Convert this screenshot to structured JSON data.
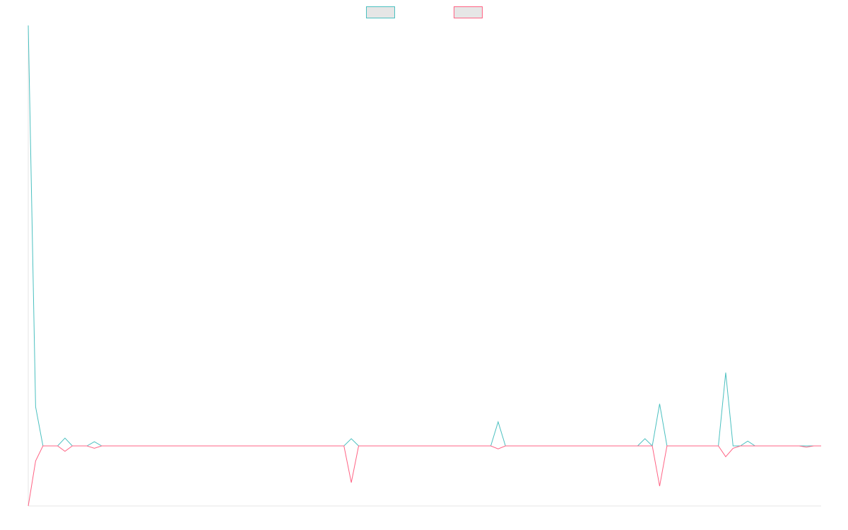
{
  "chart_data": {
    "type": "line",
    "legend": "top",
    "ylim": [
      -1,
      7
    ],
    "series": [
      {
        "color": "#4bc0c0",
        "values": [
          7,
          0.65,
          0,
          0,
          0,
          0.13,
          0,
          0,
          0,
          0.07,
          0,
          0,
          0,
          0,
          0,
          0,
          0,
          0,
          0,
          0,
          0,
          0,
          0,
          0,
          0,
          0,
          0,
          0,
          0,
          0,
          0,
          0,
          0,
          0,
          0,
          0,
          0,
          0,
          0,
          0,
          0,
          0,
          0,
          0,
          0.12,
          0,
          0,
          0,
          0,
          0,
          0,
          0,
          0,
          0,
          0,
          0,
          0,
          0,
          0,
          0,
          0,
          0,
          0,
          0,
          0.4,
          0,
          0,
          0,
          0,
          0,
          0,
          0,
          0,
          0,
          0,
          0,
          0,
          0,
          0,
          0,
          0,
          0,
          0,
          0,
          0.12,
          0,
          0.7,
          0,
          0,
          0,
          0,
          0,
          0,
          0,
          0,
          1.22,
          0,
          0,
          0.08,
          0,
          0,
          0,
          0,
          0,
          0,
          0,
          0,
          0,
          0
        ]
      },
      {
        "color": "#ff6384",
        "values": [
          -1,
          -0.25,
          0,
          0,
          0,
          -0.09,
          0,
          0,
          0,
          -0.04,
          0,
          0,
          0,
          0,
          0,
          0,
          0,
          0,
          0,
          0,
          0,
          0,
          0,
          0,
          0,
          0,
          0,
          0,
          0,
          0,
          0,
          0,
          0,
          0,
          0,
          0,
          0,
          0,
          0,
          0,
          0,
          0,
          0,
          0,
          -0.61,
          0,
          0,
          0,
          0,
          0,
          0,
          0,
          0,
          0,
          0,
          0,
          0,
          0,
          0,
          0,
          0,
          0,
          0,
          0,
          -0.05,
          0,
          0,
          0,
          0,
          0,
          0,
          0,
          0,
          0,
          0,
          0,
          0,
          0,
          0,
          0,
          0,
          0,
          0,
          0,
          0,
          0,
          -0.67,
          0,
          0,
          0,
          0,
          0,
          0,
          0,
          0,
          -0.18,
          -0.04,
          0,
          0,
          0,
          0,
          0,
          0,
          0,
          0,
          0,
          -0.02,
          0,
          0
        ]
      }
    ]
  }
}
